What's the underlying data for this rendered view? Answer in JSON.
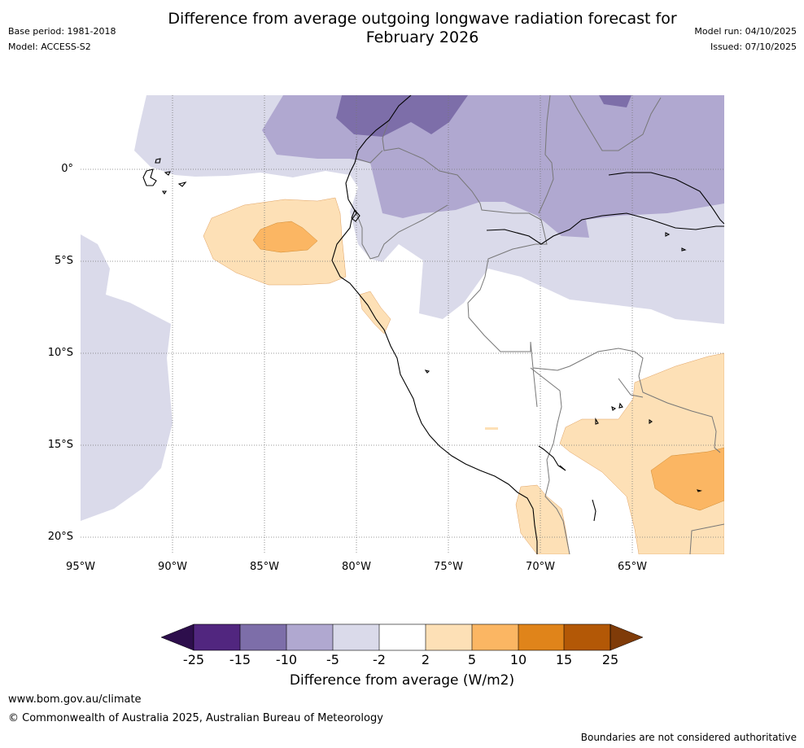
{
  "header": {
    "title_line1": "Difference from average outgoing longwave radiation forecast for",
    "title_line2": "February 2026",
    "base_period": "Base period: 1981-2018",
    "model": "Model: ACCESS-S2",
    "model_run": "Model run: 04/10/2025",
    "issued": "Issued: 07/10/2025"
  },
  "map": {
    "lat_labels": [
      "0°",
      "5°S",
      "10°S",
      "15°S",
      "20°S"
    ],
    "lon_labels": [
      "95°W",
      "90°W",
      "85°W",
      "80°W",
      "75°W",
      "70°W",
      "65°W"
    ],
    "lat_values": [
      0,
      -5,
      -10,
      -15,
      -20
    ],
    "lon_values": [
      -95,
      -90,
      -85,
      -80,
      -75,
      -70,
      -65
    ],
    "extent": {
      "lon_min": -95,
      "lon_max": -60,
      "lat_min": -21,
      "lat_max": 4
    }
  },
  "colorbar": {
    "ticks": [
      "-25",
      "-15",
      "-10",
      "-5",
      "-2",
      "2",
      "5",
      "10",
      "15",
      "25"
    ],
    "colors": [
      "#2d0e4c",
      "#51267f",
      "#7d6ea9",
      "#b0a8d0",
      "#dadaea",
      "#ffffff",
      "#fde0b6",
      "#fbb663",
      "#e0841a",
      "#b35806",
      "#7f3b08"
    ],
    "title": "Difference from average (W/m2)"
  },
  "footer": {
    "website": "www.bom.gov.au/climate",
    "copyright": "© Commonwealth of Australia 2025, Australian Bureau of Meteorology",
    "disclaimer": "Boundaries are not considered authoritative"
  }
}
